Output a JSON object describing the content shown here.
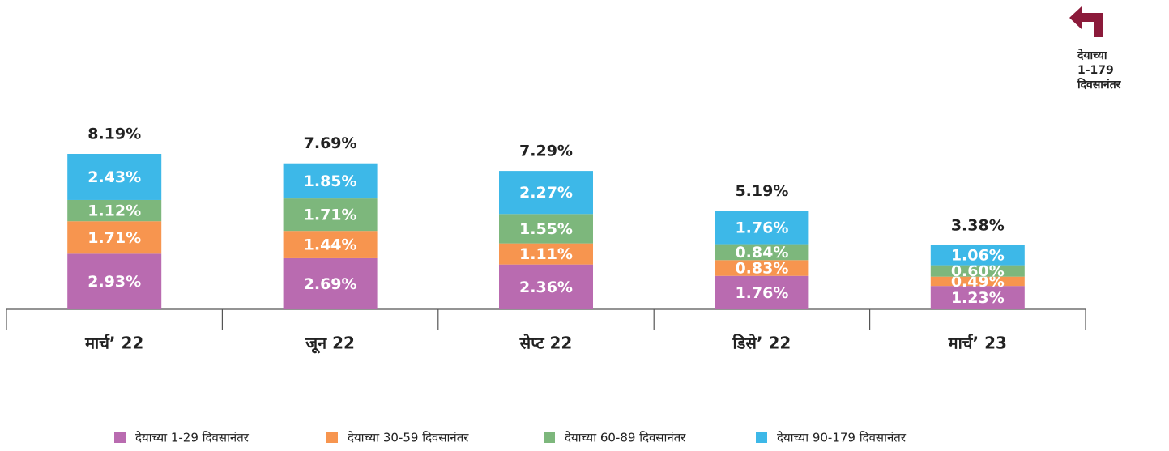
{
  "chart_data": {
    "type": "stacked_bar",
    "categories": [
      "मार्च’ 22",
      "जून 22",
      "सेप्ट 22",
      "डिसे’ 22",
      "मार्च’ 23"
    ],
    "series": [
      {
        "name": "देयाच्या 1-29 दिवसानंतर",
        "color": "#b96bb0",
        "values": [
          2.93,
          2.69,
          2.36,
          1.76,
          1.23
        ],
        "value_labels": [
          "2.93%",
          "2.69%",
          "2.36%",
          "1.76%",
          "1.23%"
        ]
      },
      {
        "name": "देयाच्या 30-59 दिवसानंतर",
        "color": "#f7954f",
        "values": [
          1.71,
          1.44,
          1.11,
          0.83,
          0.49
        ],
        "value_labels": [
          "1.71%",
          "1.44%",
          "1.11%",
          "0.83%",
          "0.49%"
        ]
      },
      {
        "name": "देयाच्या 60-89 दिवसानंतर",
        "color": "#7db77c",
        "values": [
          1.12,
          1.71,
          1.55,
          0.84,
          0.6
        ],
        "value_labels": [
          "1.12%",
          "1.71%",
          "1.55%",
          "0.84%",
          "0.60%"
        ]
      },
      {
        "name": "देयाच्या 90-179 दिवसानंतर",
        "color": "#3db8e8",
        "values": [
          2.43,
          1.85,
          2.27,
          1.76,
          1.06
        ],
        "value_labels": [
          "2.43%",
          "1.85%",
          "2.27%",
          "1.76%",
          "1.06%"
        ]
      }
    ],
    "totals": [
      8.19,
      7.69,
      7.29,
      5.19,
      3.38
    ],
    "total_labels": [
      "8.19%",
      "7.69%",
      "7.29%",
      "5.19%",
      "3.38%"
    ],
    "annotation": [
      "देयाच्या",
      "1-179",
      "दिवसानंतर"
    ],
    "legend": "bottom"
  }
}
